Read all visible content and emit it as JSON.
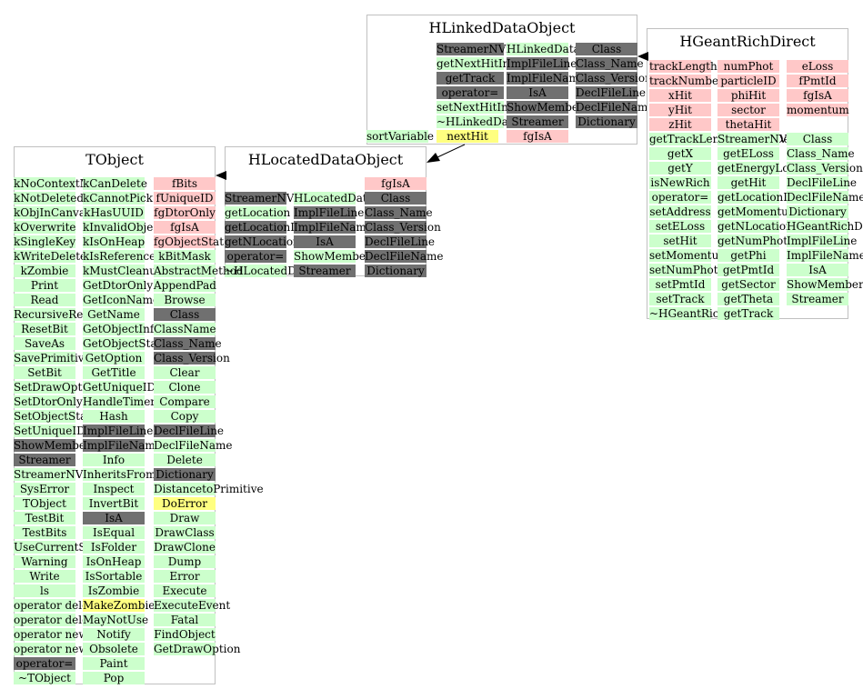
{
  "colors": {
    "red": "#ffc8c8",
    "green": "#ccffcc",
    "gray": "#707070",
    "yellow": "#ffff80",
    "border": "#c0c0c0"
  },
  "classes": {
    "hlinked": {
      "title": "HLinkedDataObject",
      "col1": [
        {
          "t": "StreamerNVirtual",
          "c": "gray"
        },
        {
          "t": "getNextHitIndex",
          "c": "green"
        },
        {
          "t": "getTrack",
          "c": "gray"
        },
        {
          "t": "operator=",
          "c": "gray"
        },
        {
          "t": "setNextHitIndex",
          "c": "green"
        },
        {
          "t": "~HLinkedDataObject",
          "c": "green"
        }
      ],
      "col2": [
        {
          "t": "HLinkedDataObject",
          "c": "green"
        },
        {
          "t": "ImplFileLine",
          "c": "gray"
        },
        {
          "t": "ImplFileName",
          "c": "gray"
        },
        {
          "t": "IsA",
          "c": "gray"
        },
        {
          "t": "ShowMembers",
          "c": "gray"
        },
        {
          "t": "Streamer",
          "c": "gray"
        },
        {
          "t": "fgIsA",
          "c": "red"
        }
      ],
      "col3": [
        {
          "t": "Class",
          "c": "gray"
        },
        {
          "t": "Class_Name",
          "c": "gray"
        },
        {
          "t": "Class_Version",
          "c": "gray"
        },
        {
          "t": "DeclFileLine",
          "c": "gray"
        },
        {
          "t": "DeclFileName",
          "c": "gray"
        },
        {
          "t": "Dictionary",
          "c": "gray"
        }
      ],
      "col4": [
        {
          "t": "sortVariable",
          "c": "green"
        }
      ],
      "col5": [
        {
          "t": "nextHit",
          "c": "yellow"
        }
      ]
    },
    "hgeant": {
      "title": "HGeantRichDirect",
      "col1": [
        {
          "t": "trackLength",
          "c": "red"
        },
        {
          "t": "trackNumber",
          "c": "red"
        },
        {
          "t": "xHit",
          "c": "red"
        },
        {
          "t": "yHit",
          "c": "red"
        },
        {
          "t": "zHit",
          "c": "red"
        },
        {
          "t": "getTrackLengthInPhotDet",
          "c": "green"
        },
        {
          "t": "getX",
          "c": "green"
        },
        {
          "t": "getY",
          "c": "green"
        },
        {
          "t": "isNewRich",
          "c": "green"
        },
        {
          "t": "operator=",
          "c": "green"
        },
        {
          "t": "setAddress",
          "c": "green"
        },
        {
          "t": "setELoss",
          "c": "green"
        },
        {
          "t": "setHit",
          "c": "green"
        },
        {
          "t": "setMomentum",
          "c": "green"
        },
        {
          "t": "setNumPhot",
          "c": "green"
        },
        {
          "t": "setPmtId",
          "c": "green"
        },
        {
          "t": "setTrack",
          "c": "green"
        },
        {
          "t": "~HGeantRichDirect",
          "c": "green"
        }
      ],
      "col2": [
        {
          "t": "numPhot",
          "c": "red"
        },
        {
          "t": "particleID",
          "c": "red"
        },
        {
          "t": "phiHit",
          "c": "red"
        },
        {
          "t": "sector",
          "c": "red"
        },
        {
          "t": "thetaHit",
          "c": "red"
        },
        {
          "t": "StreamerNVirtual",
          "c": "green"
        },
        {
          "t": "getELoss",
          "c": "green"
        },
        {
          "t": "getEnergyLoss",
          "c": "green"
        },
        {
          "t": "getHit",
          "c": "green"
        },
        {
          "t": "getLocationIndex",
          "c": "green"
        },
        {
          "t": "getMomentum",
          "c": "green"
        },
        {
          "t": "getNLocationIndex",
          "c": "green"
        },
        {
          "t": "getNumPhot",
          "c": "green"
        },
        {
          "t": "getPhi",
          "c": "green"
        },
        {
          "t": "getPmtId",
          "c": "green"
        },
        {
          "t": "getSector",
          "c": "green"
        },
        {
          "t": "getTheta",
          "c": "green"
        },
        {
          "t": "getTrack",
          "c": "green"
        }
      ],
      "col3": [
        {
          "t": "eLoss",
          "c": "red"
        },
        {
          "t": "fPmtId",
          "c": "red"
        },
        {
          "t": "fgIsA",
          "c": "red"
        },
        {
          "t": "momentum",
          "c": "red"
        },
        {
          "t": "",
          "c": "none"
        },
        {
          "t": "Class",
          "c": "green"
        },
        {
          "t": "Class_Name",
          "c": "green"
        },
        {
          "t": "Class_Version",
          "c": "green"
        },
        {
          "t": "DeclFileLine",
          "c": "green"
        },
        {
          "t": "DeclFileName",
          "c": "green"
        },
        {
          "t": "Dictionary",
          "c": "green"
        },
        {
          "t": "HGeantRichDirect",
          "c": "green"
        },
        {
          "t": "ImplFileLine",
          "c": "green"
        },
        {
          "t": "ImplFileName",
          "c": "green"
        },
        {
          "t": "IsA",
          "c": "green"
        },
        {
          "t": "ShowMembers",
          "c": "green"
        },
        {
          "t": "Streamer",
          "c": "green"
        }
      ]
    },
    "hlocated": {
      "title": "HLocatedDataObject",
      "col1": [
        {
          "t": "StreamerNVirtual",
          "c": "gray"
        },
        {
          "t": "getLocation",
          "c": "green"
        },
        {
          "t": "getLocationIndex",
          "c": "gray"
        },
        {
          "t": "getNLocationIndex",
          "c": "gray"
        },
        {
          "t": "operator=",
          "c": "gray"
        },
        {
          "t": "~HLocatedDataObject",
          "c": "green"
        }
      ],
      "col2": [
        {
          "t": "HLocatedDataObject",
          "c": "green"
        },
        {
          "t": "ImplFileLine",
          "c": "gray"
        },
        {
          "t": "ImplFileName",
          "c": "gray"
        },
        {
          "t": "IsA",
          "c": "gray"
        },
        {
          "t": "ShowMembers",
          "c": "green"
        },
        {
          "t": "Streamer",
          "c": "gray"
        }
      ],
      "col3": [
        {
          "t": "fgIsA",
          "c": "red"
        },
        {
          "t": "Class",
          "c": "gray"
        },
        {
          "t": "Class_Name",
          "c": "gray"
        },
        {
          "t": "Class_Version",
          "c": "gray"
        },
        {
          "t": "DeclFileLine",
          "c": "gray"
        },
        {
          "t": "DeclFileName",
          "c": "gray"
        },
        {
          "t": "Dictionary",
          "c": "gray"
        }
      ]
    },
    "tobject": {
      "title": "TObject",
      "col1": [
        {
          "t": "kNoContextMenu",
          "c": "green"
        },
        {
          "t": "kNotDeleted",
          "c": "green"
        },
        {
          "t": "kObjInCanvas",
          "c": "green"
        },
        {
          "t": "kOverwrite",
          "c": "green"
        },
        {
          "t": "kSingleKey",
          "c": "green"
        },
        {
          "t": "kWriteDelete",
          "c": "green"
        },
        {
          "t": "kZombie",
          "c": "green"
        },
        {
          "t": "Print",
          "c": "green"
        },
        {
          "t": "Read",
          "c": "green"
        },
        {
          "t": "RecursiveRemove",
          "c": "green"
        },
        {
          "t": "ResetBit",
          "c": "green"
        },
        {
          "t": "SaveAs",
          "c": "green"
        },
        {
          "t": "SavePrimitive",
          "c": "green"
        },
        {
          "t": "SetBit",
          "c": "green"
        },
        {
          "t": "SetDrawOption",
          "c": "green"
        },
        {
          "t": "SetDtorOnly",
          "c": "green"
        },
        {
          "t": "SetObjectStat",
          "c": "green"
        },
        {
          "t": "SetUniqueID",
          "c": "green"
        },
        {
          "t": "ShowMembers",
          "c": "gray"
        },
        {
          "t": "Streamer",
          "c": "gray"
        },
        {
          "t": "StreamerNVirtual",
          "c": "green"
        },
        {
          "t": "SysError",
          "c": "green"
        },
        {
          "t": "TObject",
          "c": "green"
        },
        {
          "t": "TestBit",
          "c": "green"
        },
        {
          "t": "TestBits",
          "c": "green"
        },
        {
          "t": "UseCurrentStyle",
          "c": "green"
        },
        {
          "t": "Warning",
          "c": "green"
        },
        {
          "t": "Write",
          "c": "green"
        },
        {
          "t": "ls",
          "c": "green"
        },
        {
          "t": "operator delete",
          "c": "green"
        },
        {
          "t": "operator delete[]",
          "c": "green"
        },
        {
          "t": "operator new",
          "c": "green"
        },
        {
          "t": "operator new[]",
          "c": "green"
        },
        {
          "t": "operator=",
          "c": "gray"
        },
        {
          "t": "~TObject",
          "c": "green"
        }
      ],
      "col2": [
        {
          "t": "kCanDelete",
          "c": "green"
        },
        {
          "t": "kCannotPick",
          "c": "green"
        },
        {
          "t": "kHasUUID",
          "c": "green"
        },
        {
          "t": "kInvalidObject",
          "c": "green"
        },
        {
          "t": "kIsOnHeap",
          "c": "green"
        },
        {
          "t": "kIsReferenced",
          "c": "green"
        },
        {
          "t": "kMustCleanup",
          "c": "green"
        },
        {
          "t": "GetDtorOnly",
          "c": "green"
        },
        {
          "t": "GetIconName",
          "c": "green"
        },
        {
          "t": "GetName",
          "c": "green"
        },
        {
          "t": "GetObjectInfo",
          "c": "green"
        },
        {
          "t": "GetObjectStat",
          "c": "green"
        },
        {
          "t": "GetOption",
          "c": "green"
        },
        {
          "t": "GetTitle",
          "c": "green"
        },
        {
          "t": "GetUniqueID",
          "c": "green"
        },
        {
          "t": "HandleTimer",
          "c": "green"
        },
        {
          "t": "Hash",
          "c": "green"
        },
        {
          "t": "ImplFileLine",
          "c": "gray"
        },
        {
          "t": "ImplFileName",
          "c": "gray"
        },
        {
          "t": "Info",
          "c": "green"
        },
        {
          "t": "InheritsFrom",
          "c": "green"
        },
        {
          "t": "Inspect",
          "c": "green"
        },
        {
          "t": "InvertBit",
          "c": "green"
        },
        {
          "t": "IsA",
          "c": "gray"
        },
        {
          "t": "IsEqual",
          "c": "green"
        },
        {
          "t": "IsFolder",
          "c": "green"
        },
        {
          "t": "IsOnHeap",
          "c": "green"
        },
        {
          "t": "IsSortable",
          "c": "green"
        },
        {
          "t": "IsZombie",
          "c": "green"
        },
        {
          "t": "MakeZombie",
          "c": "yellow"
        },
        {
          "t": "MayNotUse",
          "c": "green"
        },
        {
          "t": "Notify",
          "c": "green"
        },
        {
          "t": "Obsolete",
          "c": "green"
        },
        {
          "t": "Paint",
          "c": "green"
        },
        {
          "t": "Pop",
          "c": "green"
        }
      ],
      "col3": [
        {
          "t": "fBits",
          "c": "red"
        },
        {
          "t": "fUniqueID",
          "c": "red"
        },
        {
          "t": "fgDtorOnly",
          "c": "red"
        },
        {
          "t": "fgIsA",
          "c": "red"
        },
        {
          "t": "fgObjectStat",
          "c": "red"
        },
        {
          "t": "kBitMask",
          "c": "green"
        },
        {
          "t": "AbstractMethod",
          "c": "green"
        },
        {
          "t": "AppendPad",
          "c": "green"
        },
        {
          "t": "Browse",
          "c": "green"
        },
        {
          "t": "Class",
          "c": "gray"
        },
        {
          "t": "ClassName",
          "c": "green"
        },
        {
          "t": "Class_Name",
          "c": "gray"
        },
        {
          "t": "Class_Version",
          "c": "gray"
        },
        {
          "t": "Clear",
          "c": "green"
        },
        {
          "t": "Clone",
          "c": "green"
        },
        {
          "t": "Compare",
          "c": "green"
        },
        {
          "t": "Copy",
          "c": "green"
        },
        {
          "t": "DeclFileLine",
          "c": "gray"
        },
        {
          "t": "DeclFileName",
          "c": "green"
        },
        {
          "t": "Delete",
          "c": "green"
        },
        {
          "t": "Dictionary",
          "c": "gray"
        },
        {
          "t": "DistancetoPrimitive",
          "c": "green"
        },
        {
          "t": "DoError",
          "c": "yellow"
        },
        {
          "t": "Draw",
          "c": "green"
        },
        {
          "t": "DrawClass",
          "c": "green"
        },
        {
          "t": "DrawClone",
          "c": "green"
        },
        {
          "t": "Dump",
          "c": "green"
        },
        {
          "t": "Error",
          "c": "green"
        },
        {
          "t": "Execute",
          "c": "green"
        },
        {
          "t": "ExecuteEvent",
          "c": "green"
        },
        {
          "t": "Fatal",
          "c": "green"
        },
        {
          "t": "FindObject",
          "c": "green"
        },
        {
          "t": "GetDrawOption",
          "c": "green"
        }
      ]
    }
  }
}
